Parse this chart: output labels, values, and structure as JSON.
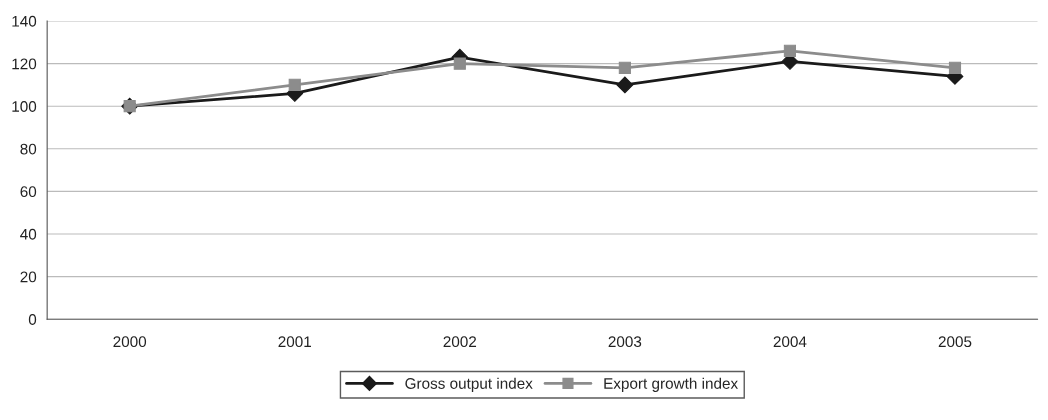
{
  "chart_data": {
    "type": "line",
    "categories": [
      "2000",
      "2001",
      "2002",
      "2003",
      "2004",
      "2005"
    ],
    "series": [
      {
        "name": "Gross output index",
        "color": "#1a1a1a",
        "marker": "diamond",
        "values": [
          100,
          106,
          123,
          110,
          121,
          114
        ]
      },
      {
        "name": "Export growth index",
        "color": "#8c8c8c",
        "marker": "square",
        "values": [
          100,
          110,
          120,
          118,
          126,
          118
        ]
      }
    ],
    "ylim": [
      0,
      140
    ],
    "yticks": [
      0,
      20,
      40,
      60,
      80,
      100,
      120,
      140
    ],
    "grid": "y",
    "legend": "bottom"
  }
}
